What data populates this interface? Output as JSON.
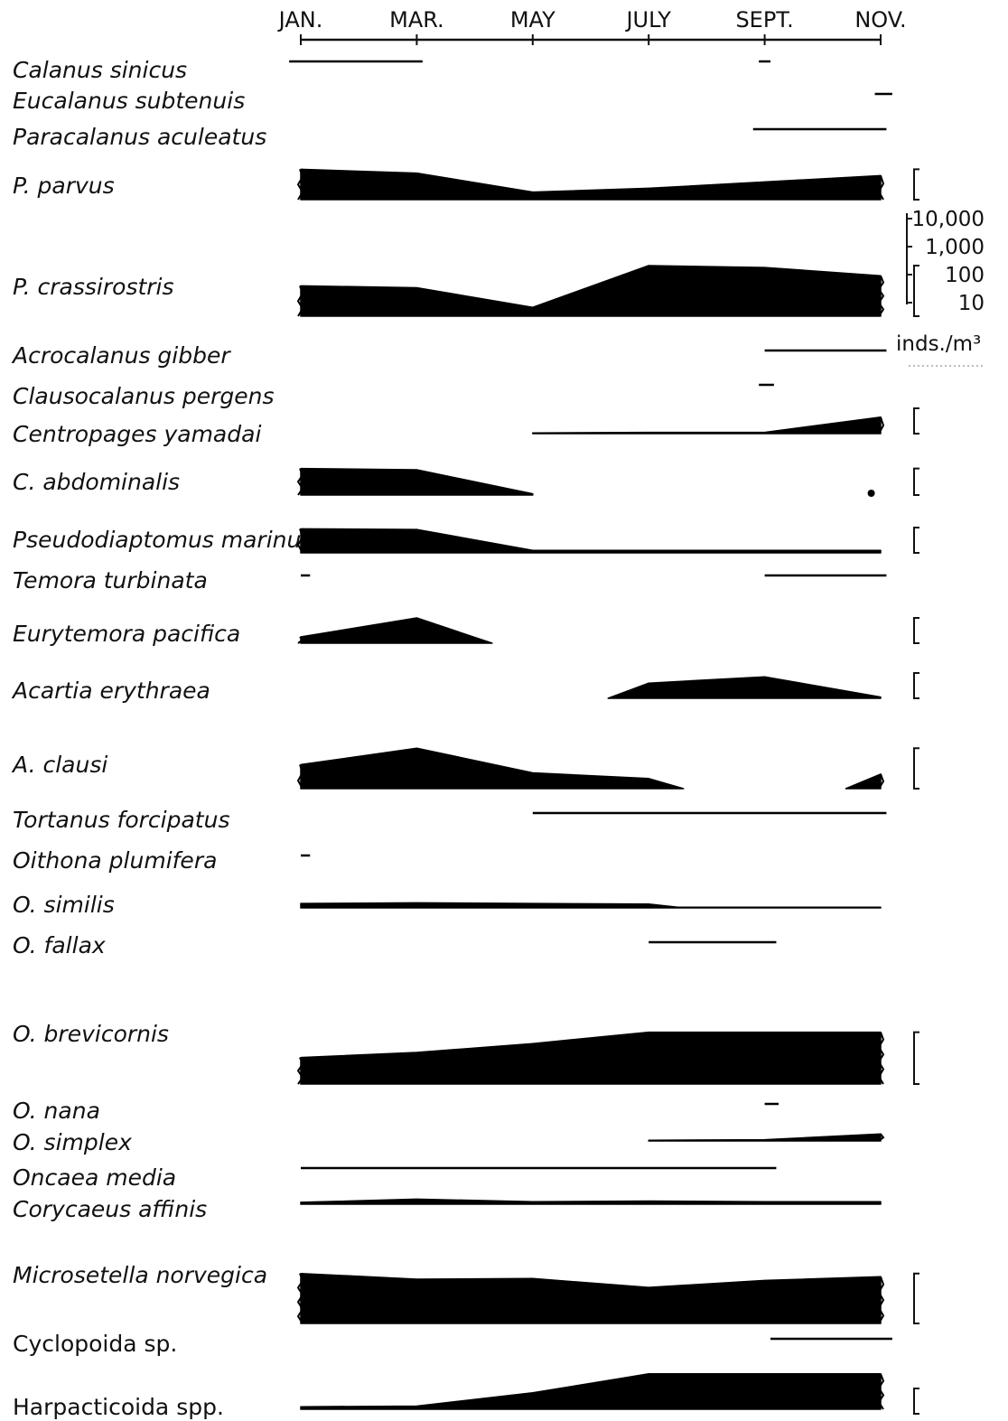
{
  "chart_data": {
    "type": "area",
    "title": "",
    "x_axis": {
      "position": "top",
      "ticks": [
        "JAN.",
        "MAR.",
        "MAY",
        "JULY",
        "SEPT.",
        "NOV."
      ]
    },
    "scale": {
      "labels": [
        "10,000",
        "1,000",
        "100",
        "10"
      ],
      "unit": "inds./m³"
    },
    "series": [
      {
        "name": "Calanus sinicus",
        "style": "italic",
        "mark": "line",
        "segments": [
          [
            -0.1,
            1.05
          ],
          [
            3.95,
            4.05
          ]
        ]
      },
      {
        "name": "Eucalanus subtenuis",
        "style": "italic",
        "mark": "line",
        "segments": [
          [
            4.95,
            5.1
          ]
        ]
      },
      {
        "name": "Paracalanus aculeatus",
        "style": "italic",
        "mark": "line",
        "segments": [
          [
            3.9,
            5.05
          ]
        ]
      },
      {
        "name": "P. parvus",
        "style": "italic",
        "mark": "area",
        "scale_bar": true,
        "points": [
          [
            0,
            2.4
          ],
          [
            1,
            2.1
          ],
          [
            2,
            0.6
          ],
          [
            3,
            0.9
          ],
          [
            4,
            1.4
          ],
          [
            5,
            1.9
          ]
        ]
      },
      {
        "name": "P. crassirostris",
        "style": "italic",
        "mark": "area",
        "scale_bar": true,
        "points": [
          [
            0,
            2.4
          ],
          [
            1,
            2.25
          ],
          [
            2,
            0.7
          ],
          [
            3,
            4.0
          ],
          [
            4,
            3.85
          ],
          [
            5,
            3.2
          ]
        ]
      },
      {
        "name": "Acrocalanus gibber",
        "style": "italic",
        "mark": "line",
        "segments": [
          [
            4.0,
            5.05
          ]
        ]
      },
      {
        "name": "Clausocalanus pergens",
        "style": "italic",
        "mark": "line",
        "segments": [
          [
            3.95,
            4.08
          ]
        ]
      },
      {
        "name": "Centropages yamadai",
        "style": "italic",
        "mark": "area",
        "scale_bar": true,
        "points": [
          [
            2,
            0.05
          ],
          [
            3,
            0.1
          ],
          [
            4,
            0.1
          ],
          [
            5,
            1.3
          ]
        ]
      },
      {
        "name": "C. abdominalis",
        "style": "italic",
        "mark": "area",
        "scale_bar": true,
        "points": [
          [
            0,
            2.1
          ],
          [
            1,
            2.0
          ],
          [
            2,
            0.1
          ]
        ],
        "extra_points": [
          [
            4.95,
            0.3
          ]
        ]
      },
      {
        "name": "Pseudodiaptomus marinus",
        "style": "italic",
        "mark": "area",
        "scale_bar": true,
        "points": [
          [
            0,
            1.9
          ],
          [
            1,
            1.85
          ],
          [
            2,
            0.2
          ],
          [
            3,
            0.2
          ],
          [
            4,
            0.2
          ],
          [
            5,
            0.2
          ]
        ]
      },
      {
        "name": "Temora turbinata",
        "style": "italic",
        "mark": "line",
        "segments": [
          [
            0,
            0.08
          ],
          [
            4.0,
            5.05
          ]
        ]
      },
      {
        "name": "Eurytemora pacifica",
        "style": "italic",
        "mark": "area",
        "scale_bar": true,
        "points": [
          [
            0,
            0.5
          ],
          [
            1,
            2.0
          ],
          [
            1.65,
            0
          ]
        ]
      },
      {
        "name": "Acartia erythraea",
        "style": "italic",
        "mark": "area",
        "scale_bar": true,
        "points": [
          [
            2.65,
            0
          ],
          [
            3,
            1.2
          ],
          [
            4,
            1.7
          ],
          [
            5,
            0.1
          ]
        ]
      },
      {
        "name": "A. clausi",
        "style": "italic",
        "mark": "area",
        "scale_bar": true,
        "points": [
          [
            0,
            1.9
          ],
          [
            1,
            3.2
          ],
          [
            2,
            1.25
          ],
          [
            3,
            0.8
          ],
          [
            3.3,
            0
          ]
        ],
        "extra_points": [
          [
            4.7,
            0
          ],
          [
            5.0,
            1.15
          ]
        ]
      },
      {
        "name": "Tortanus forcipatus",
        "style": "italic",
        "mark": "line",
        "segments": [
          [
            2.0,
            5.05
          ]
        ]
      },
      {
        "name": "Oithona plumifera",
        "style": "italic",
        "mark": "line",
        "segments": [
          [
            0,
            0.08
          ]
        ]
      },
      {
        "name": "O. similis",
        "style": "italic",
        "mark": "area",
        "points": [
          [
            0,
            0.35
          ],
          [
            1,
            0.4
          ],
          [
            2,
            0.35
          ],
          [
            3,
            0.3
          ],
          [
            3.25,
            0.05
          ],
          [
            5,
            0.05
          ]
        ]
      },
      {
        "name": "O. fallax",
        "style": "italic",
        "mark": "line",
        "segments": [
          [
            3.0,
            4.1
          ]
        ]
      },
      {
        "name": "O. brevicornis",
        "style": "italic",
        "mark": "area",
        "scale_bar": true,
        "points": [
          [
            0,
            2.1
          ],
          [
            1,
            2.5
          ],
          [
            2,
            3.2
          ],
          [
            3,
            4.1
          ],
          [
            4,
            4.1
          ],
          [
            5,
            4.1
          ]
        ]
      },
      {
        "name": "O. nana",
        "style": "italic",
        "mark": "line",
        "segments": [
          [
            4.0,
            4.12
          ]
        ]
      },
      {
        "name": "O. simplex",
        "style": "italic",
        "mark": "area",
        "points": [
          [
            3,
            0.05
          ],
          [
            4,
            0.1
          ],
          [
            5,
            0.55
          ]
        ]
      },
      {
        "name": "Oncaea media",
        "style": "italic",
        "mark": "line",
        "segments": [
          [
            0,
            4.1
          ]
        ]
      },
      {
        "name": "Corycaeus affinis",
        "style": "italic",
        "mark": "area",
        "points": [
          [
            0,
            0.15
          ],
          [
            1,
            0.4
          ],
          [
            2,
            0.2
          ],
          [
            3,
            0.25
          ],
          [
            4,
            0.2
          ],
          [
            5,
            0.2
          ]
        ]
      },
      {
        "name": "Microsetella norvegica",
        "style": "italic",
        "mark": "area",
        "scale_bar": true,
        "points": [
          [
            0,
            3.95
          ],
          [
            1,
            3.5
          ],
          [
            2,
            3.55
          ],
          [
            3,
            2.85
          ],
          [
            4,
            3.4
          ],
          [
            5,
            3.7
          ]
        ]
      },
      {
        "name": "Cyclopoida sp.",
        "style": "upright",
        "mark": "line",
        "segments": [
          [
            4.05,
            5.1
          ]
        ]
      },
      {
        "name": "Harpacticoida spp.",
        "style": "upright",
        "mark": "area",
        "scale_bar": true,
        "points": [
          [
            0,
            0.2
          ],
          [
            1,
            0.25
          ],
          [
            2,
            1.3
          ],
          [
            3,
            2.8
          ],
          [
            4,
            2.8
          ],
          [
            5,
            2.8
          ]
        ]
      }
    ]
  }
}
